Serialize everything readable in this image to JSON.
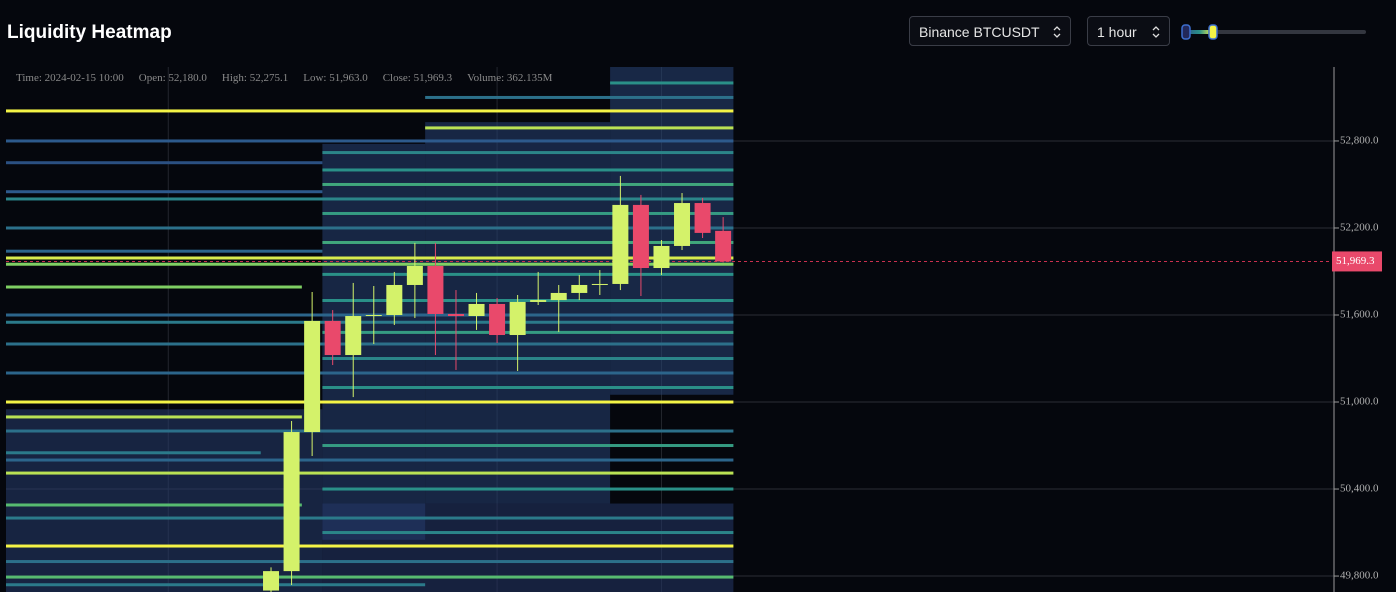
{
  "chart_data": {
    "type": "candlestick",
    "title": "Liquidity Heatmap",
    "categories": [
      null,
      null,
      null,
      null,
      null,
      null,
      null,
      null,
      null,
      null,
      null,
      null,
      null,
      null,
      null,
      null,
      null,
      null,
      null,
      null,
      null,
      null,
      null,
      null,
      null,
      null,
      null,
      null,
      null,
      null,
      null,
      null,
      null,
      null,
      null,
      null
    ],
    "open": [
      null,
      null,
      null,
      null,
      null,
      null,
      null,
      null,
      null,
      null,
      null,
      null,
      null,
      49700,
      49834,
      50793,
      51559,
      51324,
      51593,
      51600,
      51807,
      51938,
      51607,
      51593,
      51676,
      51462,
      51690,
      51703,
      51752,
      51807,
      51814,
      52359,
      51924,
      52076,
      52372,
      52180
    ],
    "high": [
      null,
      null,
      null,
      null,
      null,
      null,
      null,
      null,
      null,
      null,
      null,
      null,
      null,
      49860,
      50869,
      51759,
      51634,
      51821,
      51800,
      51897,
      52097,
      52097,
      51772,
      51752,
      51717,
      51738,
      51897,
      51807,
      51876,
      51910,
      52559,
      52428,
      52117,
      52441,
      52407,
      52275.1
    ],
    "low": [
      null,
      null,
      null,
      null,
      null,
      null,
      null,
      null,
      null,
      null,
      null,
      null,
      null,
      49690,
      49738,
      50628,
      51255,
      51034,
      51400,
      51531,
      51579,
      51324,
      51221,
      51497,
      51407,
      51214,
      51669,
      51483,
      51703,
      51738,
      51772,
      51731,
      51876,
      52048,
      52131,
      51963
    ],
    "close": [
      null,
      null,
      null,
      null,
      null,
      null,
      null,
      null,
      null,
      null,
      null,
      null,
      null,
      49834,
      50793,
      51559,
      51324,
      51593,
      51600,
      51807,
      51938,
      51607,
      51593,
      51676,
      51462,
      51690,
      51703,
      51752,
      51807,
      51814,
      52359,
      51924,
      52076,
      52372,
      52166,
      51969.3
    ],
    "up_color": "#d4f26a",
    "down_color": "#e9496b",
    "ylim": [
      49690,
      53310
    ],
    "yticks": [
      {
        "value": 49800,
        "label": "49,800.0"
      },
      {
        "value": 50400,
        "label": "50,400.0"
      },
      {
        "value": 51000,
        "label": "51,000.0"
      },
      {
        "value": 51600,
        "label": "51,600.0"
      },
      {
        "value": 52200,
        "label": "52,200.0"
      },
      {
        "value": 52800,
        "label": "52,800.0"
      }
    ],
    "grid": true,
    "x_grid": [
      8,
      24,
      32
    ],
    "legend_items": [
      "Time: 2024-02-15 10:00",
      "Open: 52,180.0",
      "High: 52,275.1",
      "Low: 51,963.0",
      "Close: 51,969.3",
      "Volume: 362.135M"
    ],
    "last_price": {
      "value": 51969.3,
      "label": "51,969.3"
    },
    "heatmap": {
      "colorscale": [
        "#22285a",
        "#2d5a8c",
        "#2a9088",
        "#62c66a",
        "#f4f446"
      ],
      "blocks": [
        [
          0,
          15,
          50950,
          49690,
          0.1
        ],
        [
          16,
          20,
          52780,
          50050,
          0.12
        ],
        [
          21,
          29,
          52930,
          50300,
          0.12
        ],
        [
          30,
          35,
          53310,
          51050,
          0.14
        ],
        [
          16,
          35,
          50300,
          49690,
          0.07
        ]
      ],
      "levels": [
        [
          53007,
          0,
          35,
          1
        ],
        [
          52890,
          21,
          35,
          0.9
        ],
        [
          53200,
          30,
          35,
          0.5
        ],
        [
          53100,
          21,
          35,
          0.35
        ],
        [
          52800,
          0,
          35,
          0.25
        ],
        [
          52720,
          16,
          35,
          0.45
        ],
        [
          52650,
          0,
          15,
          0.2
        ],
        [
          52600,
          16,
          35,
          0.5
        ],
        [
          52500,
          16,
          35,
          0.6
        ],
        [
          52450,
          0,
          15,
          0.25
        ],
        [
          52400,
          0,
          35,
          0.45
        ],
        [
          52300,
          16,
          35,
          0.55
        ],
        [
          52200,
          0,
          35,
          0.35
        ],
        [
          52100,
          16,
          35,
          0.6
        ],
        [
          52040,
          0,
          15,
          0.3
        ],
        [
          51993,
          0,
          35,
          0.95
        ],
        [
          51950,
          0,
          35,
          0.8
        ],
        [
          51880,
          16,
          35,
          0.5
        ],
        [
          51793,
          0,
          14,
          0.8
        ],
        [
          51700,
          16,
          35,
          0.5
        ],
        [
          51600,
          0,
          35,
          0.3
        ],
        [
          51550,
          0,
          35,
          0.4
        ],
        [
          51480,
          16,
          35,
          0.55
        ],
        [
          51400,
          0,
          35,
          0.35
        ],
        [
          51300,
          16,
          35,
          0.45
        ],
        [
          51200,
          0,
          35,
          0.3
        ],
        [
          51100,
          16,
          35,
          0.5
        ],
        [
          51000,
          0,
          35,
          1
        ],
        [
          50897,
          0,
          14,
          0.9
        ],
        [
          50800,
          0,
          35,
          0.35
        ],
        [
          50700,
          16,
          35,
          0.55
        ],
        [
          50650,
          0,
          12,
          0.4
        ],
        [
          50600,
          0,
          35,
          0.3
        ],
        [
          50510,
          0,
          35,
          0.9
        ],
        [
          50400,
          16,
          35,
          0.5
        ],
        [
          50290,
          0,
          14,
          0.7
        ],
        [
          50200,
          0,
          35,
          0.4
        ],
        [
          50100,
          16,
          35,
          0.45
        ],
        [
          50007,
          0,
          35,
          1
        ],
        [
          49900,
          0,
          35,
          0.35
        ],
        [
          49793,
          0,
          35,
          0.7
        ],
        [
          49740,
          0,
          20,
          0.4
        ]
      ]
    }
  },
  "controls": {
    "exchange": "Binance BTCUSDT",
    "interval": "1 hour"
  }
}
